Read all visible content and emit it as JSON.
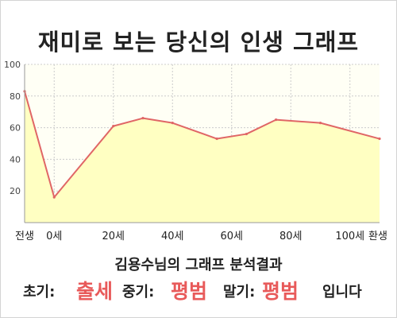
{
  "title": "재미로 보는 당신의 인생 그래프",
  "subtitle": "김용수님의 그래프 분석결과",
  "result": {
    "early_label": "초기:",
    "early_value": "출세",
    "mid_label": "중기:",
    "mid_value": "평범",
    "late_label": "말기:",
    "late_value": "평범",
    "ending": "입니다"
  },
  "colors": {
    "line": "#e06666",
    "fill": "#ffffc2",
    "highlight": "#e85a5a",
    "plot_bg": "#fffff5"
  },
  "chart_data": {
    "type": "area",
    "title": "재미로 보는 당신의 인생 그래프",
    "xlabel": "",
    "ylabel": "",
    "x": [
      -10,
      0,
      20,
      30,
      40,
      55,
      65,
      75,
      90,
      110
    ],
    "values": [
      83,
      16,
      61,
      66,
      63,
      53,
      56,
      65,
      63,
      53
    ],
    "xlim": [
      -10,
      110
    ],
    "ylim": [
      0,
      100
    ],
    "x_ticks": [
      {
        "x": -10,
        "label": "전생"
      },
      {
        "x": 0,
        "label": "0세"
      },
      {
        "x": 20,
        "label": "20세"
      },
      {
        "x": 40,
        "label": "40세"
      },
      {
        "x": 60,
        "label": "60세"
      },
      {
        "x": 80,
        "label": "80세"
      },
      {
        "x": 100,
        "label": "100세"
      },
      {
        "x": 110,
        "label": "환생"
      }
    ],
    "y_ticks": [
      20,
      40,
      60,
      80,
      100
    ],
    "grid": "dashed",
    "legend": "none"
  }
}
